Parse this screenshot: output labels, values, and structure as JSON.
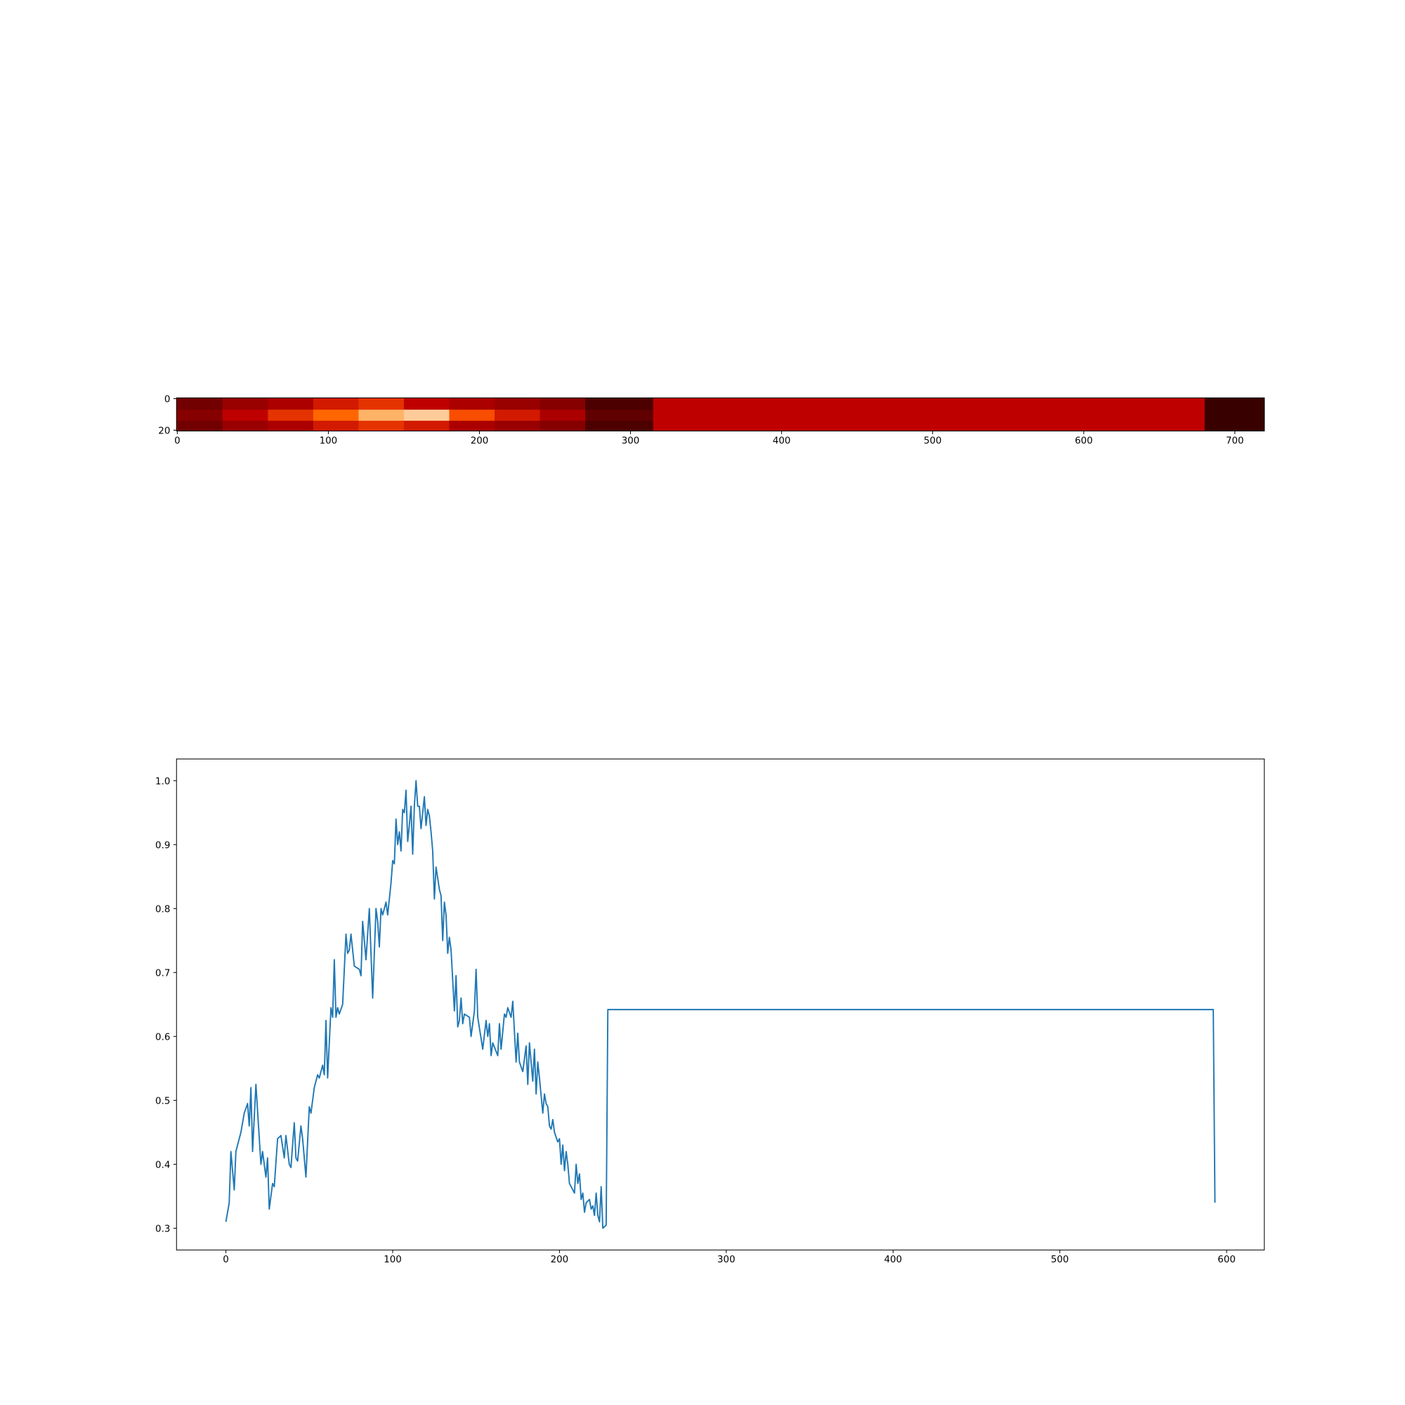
{
  "chart_data": [
    {
      "type": "heatmap",
      "colormap": "gist_heat",
      "x_edges": [
        -0.5,
        30,
        60,
        90,
        120,
        150,
        180,
        210,
        240,
        270,
        315,
        680,
        719.5
      ],
      "y_edges": [
        -0.5,
        7,
        14,
        20.5
      ],
      "values": [
        [
          0.3,
          0.4,
          0.45,
          0.55,
          0.6,
          0.5,
          0.45,
          0.4,
          0.35,
          0.2,
          0.5,
          0.15
        ],
        [
          0.35,
          0.5,
          0.6,
          0.7,
          0.85,
          0.9,
          0.65,
          0.55,
          0.45,
          0.25,
          0.5,
          0.15
        ],
        [
          0.3,
          0.4,
          0.45,
          0.55,
          0.6,
          0.55,
          0.45,
          0.4,
          0.35,
          0.2,
          0.5,
          0.15
        ]
      ],
      "xlim": [
        -0.5,
        719.5
      ],
      "ylim": [
        20.5,
        -0.5
      ],
      "xticks": [
        0,
        100,
        200,
        300,
        400,
        500,
        600,
        700
      ],
      "yticks": [
        0,
        20
      ]
    },
    {
      "type": "line",
      "color": "#1f77b4",
      "x": [
        0,
        2,
        3,
        5,
        6,
        9,
        11,
        13,
        14,
        15,
        16,
        18,
        21,
        22,
        24,
        25,
        26,
        28,
        29,
        31,
        33,
        35,
        36,
        38,
        39,
        41,
        42,
        43,
        45,
        46,
        48,
        50,
        51,
        53,
        55,
        56,
        58,
        59,
        60,
        61,
        63,
        64,
        65,
        66,
        67,
        68,
        70,
        72,
        73,
        74,
        75,
        77,
        80,
        81,
        82,
        84,
        86,
        88,
        90,
        91,
        92,
        93,
        94,
        96,
        97,
        99,
        100,
        101,
        102,
        103,
        104,
        105,
        106,
        107,
        108,
        109,
        110,
        111,
        112,
        113,
        114,
        115,
        116,
        117,
        119,
        120,
        121,
        122,
        123,
        124,
        125,
        126,
        128,
        129,
        130,
        131,
        132,
        133,
        134,
        135,
        137,
        138,
        139,
        140,
        141,
        142,
        143,
        146,
        147,
        149,
        150,
        151,
        154,
        156,
        157,
        158,
        159,
        160,
        163,
        164,
        165,
        167,
        168,
        169,
        171,
        172,
        174,
        175,
        176,
        178,
        180,
        181,
        182,
        184,
        185,
        186,
        187,
        188,
        190,
        191,
        192,
        193,
        194,
        195,
        196,
        197,
        199,
        200,
        201,
        202,
        203,
        204,
        205,
        206,
        209,
        210,
        211,
        212,
        213,
        214,
        215,
        216,
        218,
        219,
        220,
        221,
        222,
        223,
        224,
        225,
        226,
        228,
        229,
        592,
        593
      ],
      "values": [
        0.31,
        0.34,
        0.42,
        0.36,
        0.42,
        0.45,
        0.48,
        0.495,
        0.46,
        0.52,
        0.42,
        0.525,
        0.4,
        0.42,
        0.38,
        0.41,
        0.33,
        0.37,
        0.365,
        0.44,
        0.445,
        0.41,
        0.445,
        0.4,
        0.395,
        0.465,
        0.41,
        0.405,
        0.46,
        0.44,
        0.38,
        0.49,
        0.48,
        0.52,
        0.54,
        0.535,
        0.555,
        0.54,
        0.625,
        0.535,
        0.645,
        0.63,
        0.72,
        0.63,
        0.645,
        0.635,
        0.65,
        0.76,
        0.73,
        0.735,
        0.76,
        0.71,
        0.705,
        0.695,
        0.78,
        0.72,
        0.8,
        0.66,
        0.8,
        0.78,
        0.74,
        0.8,
        0.79,
        0.81,
        0.79,
        0.84,
        0.875,
        0.87,
        0.94,
        0.9,
        0.92,
        0.89,
        0.955,
        0.95,
        0.985,
        0.905,
        0.93,
        0.96,
        0.885,
        0.96,
        1.0,
        0.96,
        0.96,
        0.925,
        0.975,
        0.93,
        0.955,
        0.945,
        0.92,
        0.89,
        0.815,
        0.865,
        0.83,
        0.82,
        0.75,
        0.81,
        0.79,
        0.73,
        0.755,
        0.735,
        0.64,
        0.695,
        0.615,
        0.625,
        0.66,
        0.62,
        0.635,
        0.63,
        0.6,
        0.64,
        0.705,
        0.63,
        0.58,
        0.625,
        0.6,
        0.62,
        0.57,
        0.59,
        0.57,
        0.62,
        0.58,
        0.635,
        0.63,
        0.645,
        0.63,
        0.655,
        0.56,
        0.605,
        0.56,
        0.545,
        0.585,
        0.525,
        0.59,
        0.53,
        0.58,
        0.51,
        0.56,
        0.535,
        0.48,
        0.51,
        0.495,
        0.49,
        0.46,
        0.455,
        0.47,
        0.45,
        0.435,
        0.44,
        0.4,
        0.43,
        0.39,
        0.42,
        0.4,
        0.37,
        0.355,
        0.4,
        0.37,
        0.385,
        0.345,
        0.355,
        0.325,
        0.34,
        0.345,
        0.33,
        0.335,
        0.32,
        0.355,
        0.32,
        0.31,
        0.365,
        0.3,
        0.305,
        0.642,
        0.642,
        0.34
      ],
      "xlim": [
        -29.6,
        622.6
      ],
      "ylim": [
        0.266,
        1.034
      ],
      "xticks": [
        0,
        100,
        200,
        300,
        400,
        500,
        600
      ],
      "yticks": [
        0.3,
        0.4,
        0.5,
        0.6,
        0.7,
        0.8,
        0.9,
        {
          "value": 1.0,
          "label": "1.0"
        }
      ]
    }
  ]
}
